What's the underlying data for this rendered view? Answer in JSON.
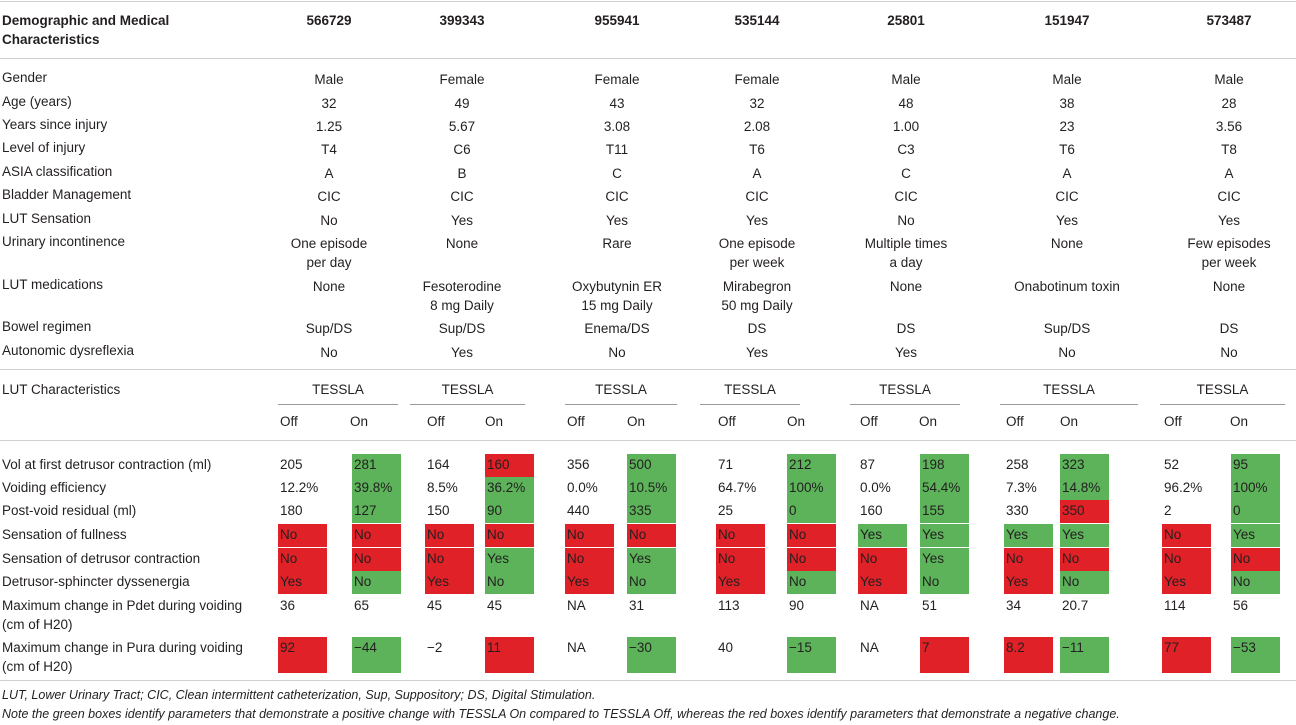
{
  "colors": {
    "positive": "#5cb35a",
    "negative": "#e12128",
    "rule": "#cfcfcf"
  },
  "header": {
    "title_line1": "Demographic and Medical",
    "title_line2": "Characteristics",
    "patients": [
      "566729",
      "399343",
      "955941",
      "535144",
      "25801",
      "151947",
      "573487"
    ]
  },
  "demographics": [
    {
      "label": "Gender",
      "values": [
        [
          "Male"
        ],
        [
          "Female"
        ],
        [
          "Female"
        ],
        [
          "Female"
        ],
        [
          "Male"
        ],
        [
          "Male"
        ],
        [
          "Male"
        ]
      ]
    },
    {
      "label": "Age (years)",
      "values": [
        [
          "32"
        ],
        [
          "49"
        ],
        [
          "43"
        ],
        [
          "32"
        ],
        [
          "48"
        ],
        [
          "38"
        ],
        [
          "28"
        ]
      ]
    },
    {
      "label": "Years since injury",
      "values": [
        [
          "1.25"
        ],
        [
          "5.67"
        ],
        [
          "3.08"
        ],
        [
          "2.08"
        ],
        [
          "1.00"
        ],
        [
          "23"
        ],
        [
          "3.56"
        ]
      ]
    },
    {
      "label": "Level of injury",
      "values": [
        [
          "T4"
        ],
        [
          "C6"
        ],
        [
          "T11"
        ],
        [
          "T6"
        ],
        [
          "C3"
        ],
        [
          "T6"
        ],
        [
          "T8"
        ]
      ]
    },
    {
      "label": "ASIA classification",
      "values": [
        [
          "A"
        ],
        [
          "B"
        ],
        [
          "C"
        ],
        [
          "A"
        ],
        [
          "C"
        ],
        [
          "A"
        ],
        [
          "A"
        ]
      ]
    },
    {
      "label": "Bladder Management",
      "values": [
        [
          "CIC"
        ],
        [
          "CIC"
        ],
        [
          "CIC"
        ],
        [
          "CIC"
        ],
        [
          "CIC"
        ],
        [
          "CIC"
        ],
        [
          "CIC"
        ]
      ]
    },
    {
      "label": "LUT Sensation",
      "values": [
        [
          "No"
        ],
        [
          "Yes"
        ],
        [
          "Yes"
        ],
        [
          "Yes"
        ],
        [
          "No"
        ],
        [
          "Yes"
        ],
        [
          "Yes"
        ]
      ]
    },
    {
      "label": "Urinary incontinence",
      "values": [
        [
          "One episode",
          "per day"
        ],
        [
          "None"
        ],
        [
          "Rare"
        ],
        [
          "One episode",
          "per week"
        ],
        [
          "Multiple times",
          "a day"
        ],
        [
          "None"
        ],
        [
          "Few episodes",
          "per week"
        ]
      ]
    },
    {
      "label": "LUT medications",
      "values": [
        [
          "None"
        ],
        [
          "Fesoterodine",
          "8 mg Daily"
        ],
        [
          "Oxybutynin ER",
          "15 mg Daily"
        ],
        [
          "Mirabegron",
          "50 mg Daily"
        ],
        [
          "None"
        ],
        [
          "Onabotinum toxin"
        ],
        [
          "None"
        ]
      ]
    },
    {
      "label": "Bowel regimen",
      "values": [
        [
          "Sup/DS"
        ],
        [
          "Sup/DS"
        ],
        [
          "Enema/DS"
        ],
        [
          "DS"
        ],
        [
          "DS"
        ],
        [
          "Sup/DS"
        ],
        [
          "DS"
        ]
      ]
    },
    {
      "label": "Autonomic dysreflexia",
      "values": [
        [
          "No"
        ],
        [
          "Yes"
        ],
        [
          "No"
        ],
        [
          "Yes"
        ],
        [
          "Yes"
        ],
        [
          "No"
        ],
        [
          "No"
        ]
      ]
    }
  ],
  "lut": {
    "section_label": "LUT Characteristics",
    "group_label": "TESSLA",
    "off_label": "Off",
    "on_label": "On",
    "rows": [
      {
        "label": [
          "Vol at first detrusor contraction (ml)"
        ],
        "cells": [
          [
            "205",
            "",
            ""
          ],
          [
            "281",
            "",
            "g"
          ],
          [
            "164",
            "",
            ""
          ],
          [
            "160",
            "",
            "r"
          ],
          [
            "356",
            "",
            ""
          ],
          [
            "500",
            "",
            "g"
          ],
          [
            "71",
            "",
            ""
          ],
          [
            "212",
            "",
            "g"
          ],
          [
            "87",
            "",
            ""
          ],
          [
            "198",
            "",
            "g"
          ],
          [
            "258",
            "",
            ""
          ],
          [
            "323",
            "",
            "g"
          ],
          [
            "52",
            "",
            ""
          ],
          [
            "95",
            "",
            "g"
          ]
        ]
      },
      {
        "label": [
          "Voiding efficiency"
        ],
        "cells": [
          [
            "12.2%",
            "",
            ""
          ],
          [
            "39.8%",
            "",
            "g"
          ],
          [
            "8.5%",
            "",
            ""
          ],
          [
            "36.2%",
            "",
            "g"
          ],
          [
            "0.0%",
            "",
            ""
          ],
          [
            "10.5%",
            "",
            "g"
          ],
          [
            "64.7%",
            "",
            ""
          ],
          [
            "100%",
            "",
            "g"
          ],
          [
            "0.0%",
            "",
            ""
          ],
          [
            "54.4%",
            "",
            "g"
          ],
          [
            "7.3%",
            "",
            ""
          ],
          [
            "14.8%",
            "",
            "g"
          ],
          [
            "96.2%",
            "",
            ""
          ],
          [
            "100%",
            "",
            "g"
          ]
        ]
      },
      {
        "label": [
          "Post-void residual (ml)"
        ],
        "cells": [
          [
            "180",
            "",
            ""
          ],
          [
            "127",
            "",
            "g"
          ],
          [
            "150",
            "",
            ""
          ],
          [
            "90",
            "",
            "g"
          ],
          [
            "440",
            "",
            ""
          ],
          [
            "335",
            "",
            "g"
          ],
          [
            "25",
            "",
            ""
          ],
          [
            "0",
            "",
            "g"
          ],
          [
            "160",
            "",
            ""
          ],
          [
            "155",
            "",
            "g"
          ],
          [
            "330",
            "",
            ""
          ],
          [
            "350",
            "",
            "r"
          ],
          [
            "2",
            "",
            ""
          ],
          [
            "0",
            "",
            "g"
          ]
        ]
      },
      {
        "label": [
          "Sensation of fullness"
        ],
        "cells": [
          [
            "No",
            "",
            "r"
          ],
          [
            "No",
            "",
            "r"
          ],
          [
            "No",
            "",
            "r"
          ],
          [
            "No",
            "",
            "r"
          ],
          [
            "No",
            "",
            "r"
          ],
          [
            "No",
            "",
            "r"
          ],
          [
            "No",
            "",
            "r"
          ],
          [
            "No",
            "",
            "r"
          ],
          [
            "Yes",
            "",
            "g"
          ],
          [
            "Yes",
            "",
            "g"
          ],
          [
            "Yes",
            "",
            "g"
          ],
          [
            "Yes",
            "",
            "g"
          ],
          [
            "No",
            "",
            "r"
          ],
          [
            "Yes",
            "",
            "g"
          ]
        ]
      },
      {
        "label": [
          "Sensation of detrusor contraction"
        ],
        "cells": [
          [
            "No",
            "",
            "r"
          ],
          [
            "No",
            "",
            "r"
          ],
          [
            "No",
            "",
            "r"
          ],
          [
            "Yes",
            "",
            "g"
          ],
          [
            "No",
            "",
            "r"
          ],
          [
            "Yes",
            "",
            "g"
          ],
          [
            "No",
            "",
            "r"
          ],
          [
            "No",
            "",
            "r"
          ],
          [
            "No",
            "",
            "r"
          ],
          [
            "Yes",
            "",
            "g"
          ],
          [
            "No",
            "",
            "r"
          ],
          [
            "No",
            "",
            "r"
          ],
          [
            "No",
            "",
            "r"
          ],
          [
            "No",
            "",
            "r"
          ]
        ]
      },
      {
        "label": [
          "Detrusor-sphincter dyssenergia"
        ],
        "cells": [
          [
            "Yes",
            "",
            "r"
          ],
          [
            "No",
            "",
            "g"
          ],
          [
            "Yes",
            "",
            "r"
          ],
          [
            "No",
            "",
            "g"
          ],
          [
            "Yes",
            "",
            "r"
          ],
          [
            "No",
            "",
            "g"
          ],
          [
            "Yes",
            "",
            "r"
          ],
          [
            "No",
            "",
            "g"
          ],
          [
            "Yes",
            "",
            "r"
          ],
          [
            "No",
            "",
            "g"
          ],
          [
            "Yes",
            "",
            "r"
          ],
          [
            "No",
            "",
            "g"
          ],
          [
            "Yes",
            "",
            "r"
          ],
          [
            "No",
            "",
            "g"
          ]
        ]
      },
      {
        "label": [
          "Maximum change in Pdet during voiding",
          "(cm of H20)"
        ],
        "cells": [
          [
            "36",
            "",
            ""
          ],
          [
            "65",
            "",
            ""
          ],
          [
            "45",
            "",
            ""
          ],
          [
            "45",
            "",
            ""
          ],
          [
            "NA",
            "",
            ""
          ],
          [
            "31",
            "",
            ""
          ],
          [
            "113",
            "",
            ""
          ],
          [
            "90",
            "",
            ""
          ],
          [
            "NA",
            "",
            ""
          ],
          [
            "51",
            "",
            ""
          ],
          [
            "34",
            "",
            ""
          ],
          [
            "20.7",
            "",
            ""
          ],
          [
            "114",
            "",
            ""
          ],
          [
            "56",
            "",
            ""
          ]
        ]
      },
      {
        "label": [
          "Maximum change in Pura during voiding",
          "(cm of H20)"
        ],
        "cells": [
          [
            "92",
            "",
            "r"
          ],
          [
            "−44",
            "",
            "g"
          ],
          [
            "−2",
            "",
            ""
          ],
          [
            "11",
            "",
            "r"
          ],
          [
            "NA",
            "",
            ""
          ],
          [
            "−30",
            "",
            "g"
          ],
          [
            "40",
            "",
            ""
          ],
          [
            "−15",
            "",
            "g"
          ],
          [
            "NA",
            "",
            ""
          ],
          [
            "7",
            "",
            "r"
          ],
          [
            "8.2",
            "",
            "r"
          ],
          [
            "−11",
            "",
            "g"
          ],
          [
            "77",
            "",
            "r"
          ],
          [
            "−53",
            "",
            "g"
          ]
        ]
      }
    ]
  },
  "footnotes": {
    "abbreviations": "LUT, Lower Urinary Tract; CIC, Clean intermittent catheterization, Sup, Suppository; DS, Digital Stimulation.",
    "note": "Note the green boxes identify parameters that demonstrate a positive change with TESSLA On compared to TESSLA Off, whereas the red boxes identify parameters that demonstrate a negative change."
  }
}
